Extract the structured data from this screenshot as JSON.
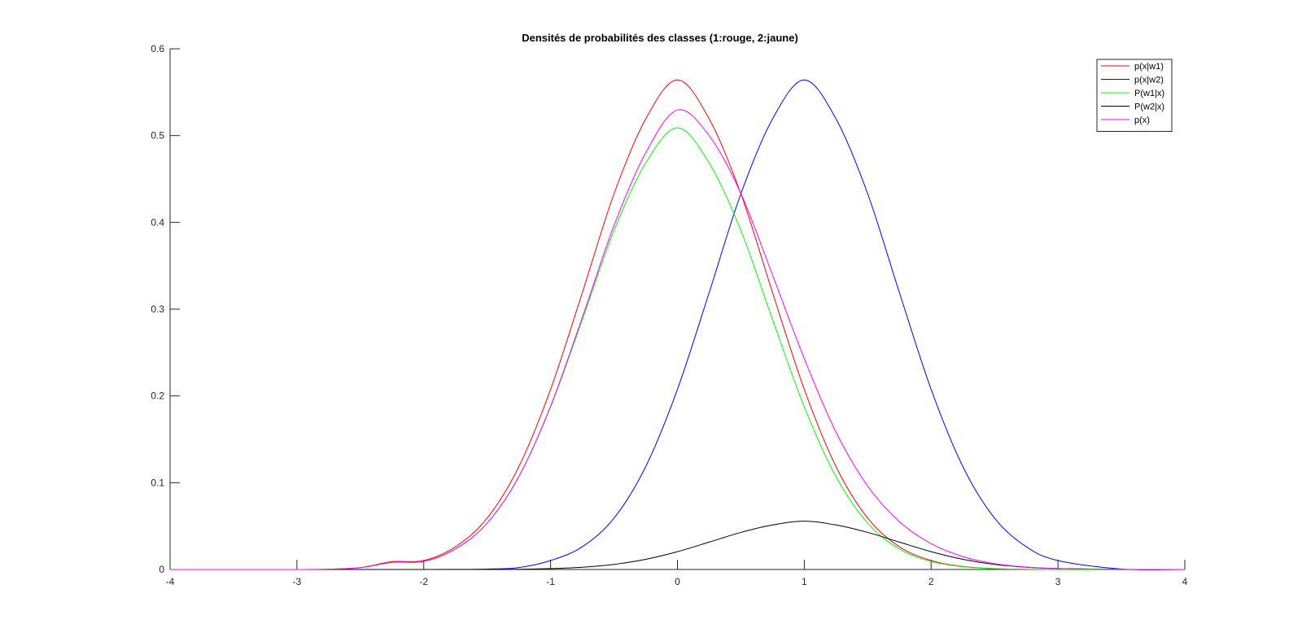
{
  "chart_data": {
    "type": "line",
    "title": "Densités de probabilités des classes (1:rouge, 2:jaune)",
    "xlabel": "",
    "ylabel": "",
    "xlim": [
      -4,
      4
    ],
    "ylim": [
      0,
      0.6
    ],
    "x_ticks": [
      -4,
      -3,
      -2,
      -1,
      0,
      1,
      2,
      3,
      4
    ],
    "y_ticks": [
      0,
      0.1,
      0.2,
      0.3,
      0.4,
      0.5,
      0.6
    ],
    "x_tick_labels": [
      "-4",
      "-3",
      "-2",
      "-1",
      "0",
      "1",
      "2",
      "3",
      "4"
    ],
    "y_tick_labels": [
      "0",
      "0.1",
      "0.2",
      "0.3",
      "0.4",
      "0.5",
      "0.6"
    ],
    "grid": false,
    "legend_position": "top-right",
    "x": [
      -4,
      -3.5,
      -3,
      -2.75,
      -2.5,
      -2.25,
      -2,
      -1.75,
      -1.5,
      -1.25,
      -1,
      -0.75,
      -0.5,
      -0.25,
      0,
      0.25,
      0.5,
      0.75,
      1,
      1.25,
      1.5,
      1.75,
      2,
      2.25,
      2.5,
      2.75,
      3,
      3.5,
      4
    ],
    "series": [
      {
        "name": "p(x|w1)",
        "color": "#ff0000",
        "values": [
          0,
          0,
          0,
          0.0004,
          0.0022,
          0.009,
          0.0103,
          0.0262,
          0.0592,
          0.1186,
          0.2076,
          0.319,
          0.4329,
          0.5193,
          0.5642,
          0.5193,
          0.4329,
          0.319,
          0.2076,
          0.1186,
          0.0592,
          0.0262,
          0.0103,
          0.0035,
          0.001,
          0.0002,
          0.0,
          0.0,
          0.0
        ]
      },
      {
        "name": "p(x|w2)",
        "color": "#0000ff",
        "values": [
          0,
          0,
          0,
          0,
          0,
          0,
          0.0,
          0.0001,
          0.0005,
          0.0022,
          0.0103,
          0.0262,
          0.0592,
          0.1186,
          0.2076,
          0.319,
          0.4329,
          0.5193,
          0.5642,
          0.5193,
          0.4329,
          0.319,
          0.2076,
          0.1186,
          0.0592,
          0.0262,
          0.0103,
          0.0005,
          0.0
        ]
      },
      {
        "name": "P(w1|x)",
        "color": "#00ff00",
        "values": [
          0,
          0,
          0,
          0.0003,
          0.002,
          0.0082,
          0.0093,
          0.0236,
          0.0534,
          0.107,
          0.1873,
          0.2879,
          0.3906,
          0.4685,
          0.509,
          0.4685,
          0.3906,
          0.2879,
          0.1873,
          0.107,
          0.0534,
          0.0236,
          0.0093,
          0.0032,
          0.0009,
          0.0002,
          0.0,
          0.0,
          0.0
        ]
      },
      {
        "name": "P(w2|x)",
        "color": "#000000",
        "values": [
          0,
          0,
          0,
          0,
          0,
          0,
          0.0,
          0.0,
          0.0,
          0.0002,
          0.001,
          0.0026,
          0.0059,
          0.0117,
          0.0205,
          0.0315,
          0.0427,
          0.0513,
          0.0557,
          0.0513,
          0.0427,
          0.0315,
          0.0205,
          0.0117,
          0.0058,
          0.0026,
          0.001,
          0.0001,
          0.0
        ]
      },
      {
        "name": "p(x)",
        "color": "#ff00ff",
        "values": [
          0,
          0,
          0,
          0.0003,
          0.002,
          0.0082,
          0.0093,
          0.0236,
          0.0534,
          0.1072,
          0.1883,
          0.2905,
          0.3965,
          0.4802,
          0.5295,
          0.5,
          0.4333,
          0.3392,
          0.243,
          0.1583,
          0.0961,
          0.0551,
          0.0298,
          0.0149,
          0.0067,
          0.0028,
          0.001,
          0.0001,
          0.0
        ]
      }
    ]
  }
}
